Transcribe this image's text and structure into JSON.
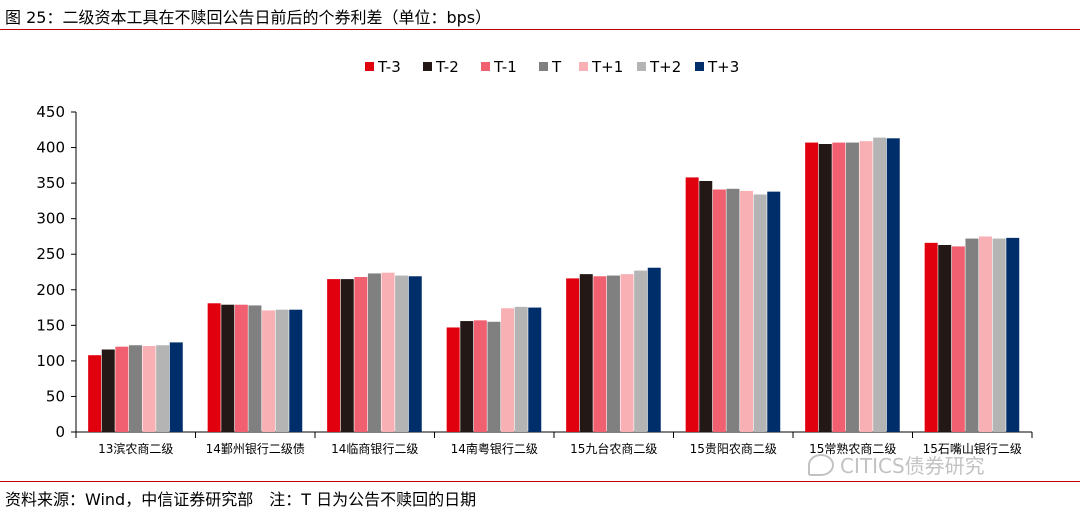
{
  "header": {
    "title": "图 25：二级资本工具在不赎回公告日前后的个券利差（单位：bps）"
  },
  "footer": {
    "source": "资料来源：Wind，中信证券研究部　注：T 日为公告不赎回的日期"
  },
  "watermark": {
    "text": "CITICS债券研究",
    "icon": "wechat-icon"
  },
  "colors": {
    "rule": "#c00000",
    "series": [
      "#e0000e",
      "#231815",
      "#f06070",
      "#808080",
      "#f8b0b4",
      "#b4b4b4",
      "#002e6b"
    ]
  },
  "chart_data": {
    "type": "bar",
    "title": "",
    "xlabel": "",
    "ylabel": "",
    "ylim": [
      0,
      450
    ],
    "yticks": [
      0,
      50,
      100,
      150,
      200,
      250,
      300,
      350,
      400,
      450
    ],
    "grid": false,
    "legend_position": "top-center",
    "categories": [
      "13滨农商二级",
      "14鄞州银行二级债",
      "14临商银行二级",
      "14南粤银行二级",
      "15九台农商二级",
      "15贵阳农商二级",
      "15常熟农商二级",
      "15石嘴山银行二级"
    ],
    "series": [
      {
        "name": "T-3",
        "values": [
          108,
          181,
          215,
          147,
          216,
          358,
          407,
          266
        ]
      },
      {
        "name": "T-2",
        "values": [
          116,
          179,
          215,
          156,
          222,
          353,
          405,
          263
        ]
      },
      {
        "name": "T-1",
        "values": [
          120,
          179,
          218,
          157,
          219,
          341,
          407,
          261
        ]
      },
      {
        "name": "T",
        "values": [
          122,
          178,
          223,
          155,
          220,
          342,
          407,
          272
        ]
      },
      {
        "name": "T+1",
        "values": [
          121,
          171,
          224,
          174,
          222,
          339,
          409,
          275
        ]
      },
      {
        "name": "T+2",
        "values": [
          122,
          172,
          220,
          176,
          227,
          334,
          414,
          272
        ]
      },
      {
        "name": "T+3",
        "values": [
          126,
          172,
          219,
          175,
          231,
          338,
          413,
          273
        ]
      }
    ]
  }
}
